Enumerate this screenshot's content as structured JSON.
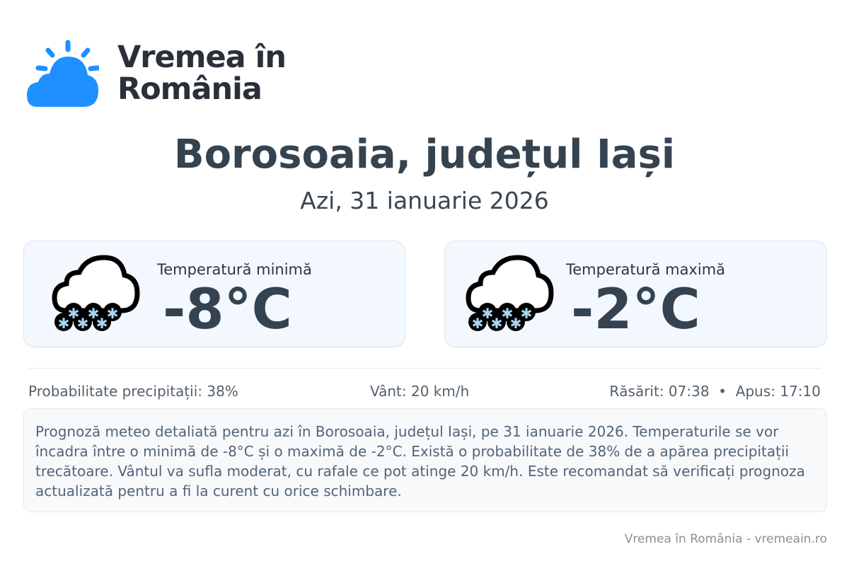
{
  "logo": {
    "line1": "Vremea în",
    "line2": "România",
    "accent": "#1e90ff"
  },
  "header": {
    "title": "Borosoaia, județul Iași",
    "subtitle": "Azi, 31 ianuarie 2026"
  },
  "cards": [
    {
      "label": "Temperatură minimă",
      "value": "-8°C",
      "icon": "snow-cloud-icon"
    },
    {
      "label": "Temperatură maximă",
      "value": "-2°C",
      "icon": "snow-cloud-icon"
    }
  ],
  "stats": {
    "precip": "Probabilitate precipitații: 38%",
    "wind": "Vânt: 20 km/h",
    "sun": "Răsărit: 07:38  •  Apus: 17:10"
  },
  "description": "Prognoză meteo detaliată pentru azi în Borosoaia, județul Iași, pe 31 ianuarie 2026. Temperaturile se vor încadra între o minimă de -8°C și o maximă de -2°C. Există o probabilitate de 38% de a apărea precipitații trecătoare. Vântul va sufla moderat, cu rafale ce pot atinge 20 km/h. Este recomandat să verificați prognoza actualizată pentru a fi la curent cu orice schimbare.",
  "footer": "Vremea în România - vremeain.ro"
}
